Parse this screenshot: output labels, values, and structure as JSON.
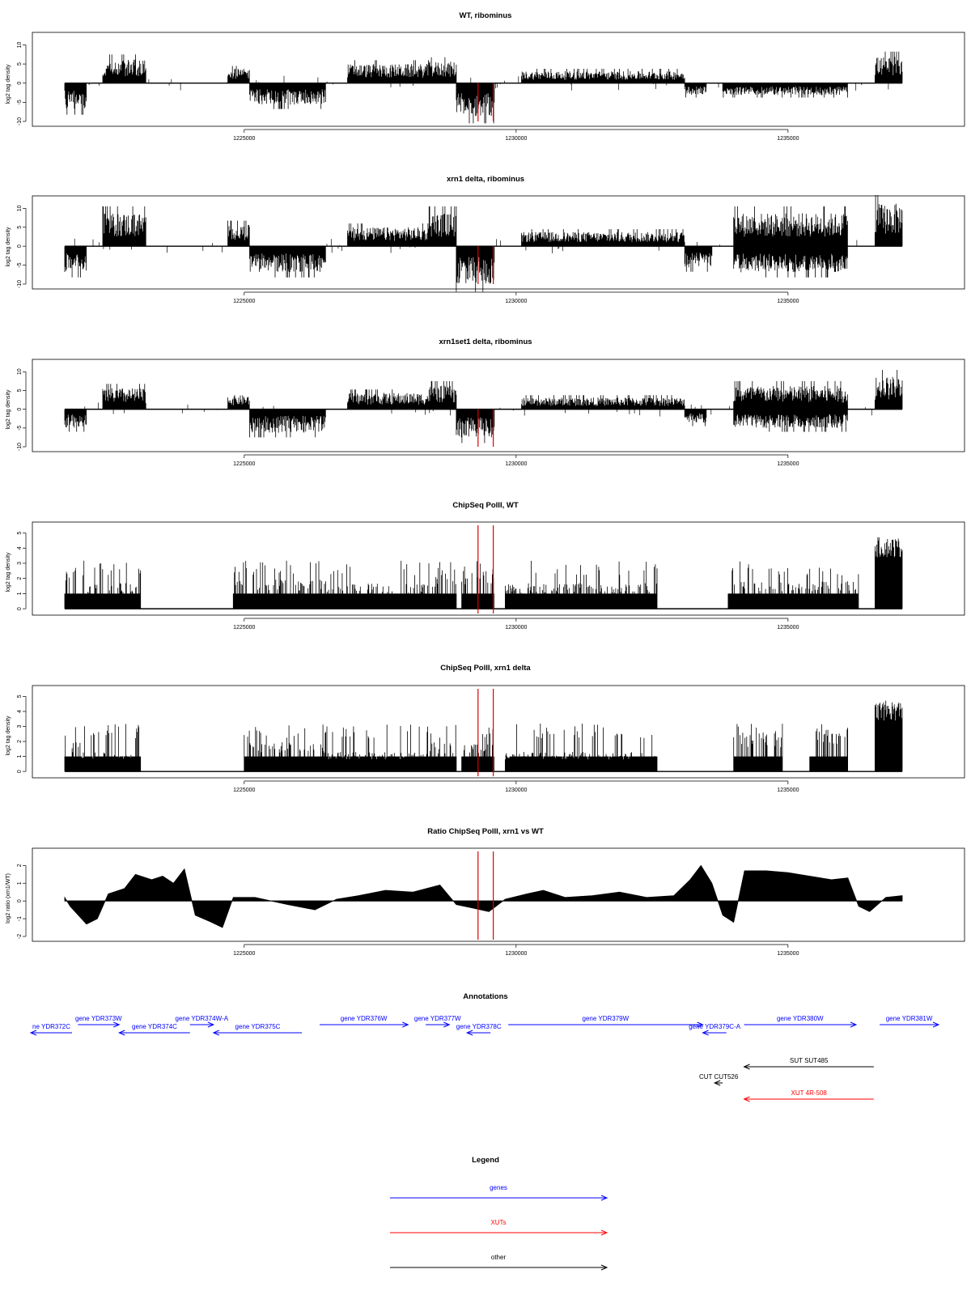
{
  "colors": {
    "ink": "#000000",
    "highlight": "#e00000",
    "genes": "#0000ff",
    "xuts": "#ff0000",
    "other": "#000000"
  },
  "chart_data": [
    {
      "type": "bar",
      "title": "WT, ribominus",
      "ylabel": "log2 tag density",
      "xlim": [
        1221700,
        1237100
      ],
      "ylim": [
        -10,
        12
      ],
      "y_ticks": [
        -10,
        -5,
        0,
        5,
        10
      ],
      "x_ticks": [
        1225000,
        1230000,
        1235000
      ],
      "highlight_x": [
        1229300,
        1229580
      ],
      "series": [
        {
          "values": [
            {
              "x": [
                1221700,
                1222100
              ],
              "y": -5.5
            },
            {
              "x": [
                1222400,
                1223200
              ],
              "y": 5.0
            },
            {
              "x": [
                1224700,
                1225100
              ],
              "y": 3.0
            },
            {
              "x": [
                1225100,
                1226500
              ],
              "y": -4.5
            },
            {
              "x": [
                1226900,
                1228400
              ],
              "y": 4.0
            },
            {
              "x": [
                1228400,
                1228900
              ],
              "y": 4.5
            },
            {
              "x": [
                1228900,
                1229600
              ],
              "y": -7.0
            },
            {
              "x": [
                1230100,
                1233100
              ],
              "y": 2.5
            },
            {
              "x": [
                1233100,
                1233500
              ],
              "y": -2.5
            },
            {
              "x": [
                1233800,
                1235000
              ],
              "y": -2.5
            },
            {
              "x": [
                1235000,
                1236100
              ],
              "y": -2.5
            },
            {
              "x": [
                1236600,
                1237100
              ],
              "y": 5.5
            }
          ]
        }
      ]
    },
    {
      "type": "bar",
      "title": "xrn1 delta, ribominus",
      "ylabel": "log2 tag density",
      "xlim": [
        1221700,
        1237100
      ],
      "ylim": [
        -10,
        12
      ],
      "y_ticks": [
        -10,
        -5,
        0,
        5,
        10
      ],
      "x_ticks": [
        1225000,
        1230000,
        1235000
      ],
      "highlight_x": [
        1229300,
        1229580
      ],
      "series": [
        {
          "values": [
            {
              "x": [
                1221700,
                1222100
              ],
              "y": -5.5
            },
            {
              "x": [
                1222400,
                1223200
              ],
              "y": 7.0
            },
            {
              "x": [
                1224700,
                1225100
              ],
              "y": 4.5
            },
            {
              "x": [
                1225100,
                1226500
              ],
              "y": -5.5
            },
            {
              "x": [
                1226900,
                1228400
              ],
              "y": 4.0
            },
            {
              "x": [
                1228400,
                1228900
              ],
              "y": 7.0
            },
            {
              "x": [
                1228900,
                1229600
              ],
              "y": -8.0
            },
            {
              "x": [
                1230100,
                1233100
              ],
              "y": 3.0
            },
            {
              "x": [
                1233100,
                1233600
              ],
              "y": -4.5
            },
            {
              "x": [
                1234000,
                1236100
              ],
              "y": 7.0
            },
            {
              "x": [
                1234000,
                1236100
              ],
              "y": -5.5
            },
            {
              "x": [
                1236600,
                1237100
              ],
              "y": 9.0
            }
          ]
        }
      ]
    },
    {
      "type": "bar",
      "title": "xrn1set1 delta, ribominus",
      "ylabel": "log2 tag density",
      "xlim": [
        1221700,
        1237100
      ],
      "ylim": [
        -10,
        12
      ],
      "y_ticks": [
        -10,
        -5,
        0,
        5,
        10
      ],
      "x_ticks": [
        1225000,
        1230000,
        1235000
      ],
      "highlight_x": [
        1229300,
        1229580
      ],
      "series": [
        {
          "values": [
            {
              "x": [
                1221700,
                1222100
              ],
              "y": -4.0
            },
            {
              "x": [
                1222400,
                1223200
              ],
              "y": 4.5
            },
            {
              "x": [
                1224700,
                1225100
              ],
              "y": 3.0
            },
            {
              "x": [
                1225100,
                1226500
              ],
              "y": -5.0
            },
            {
              "x": [
                1226900,
                1228400
              ],
              "y": 3.5
            },
            {
              "x": [
                1228400,
                1228900
              ],
              "y": 5.0
            },
            {
              "x": [
                1228900,
                1229600
              ],
              "y": -6.0
            },
            {
              "x": [
                1230100,
                1233100
              ],
              "y": 2.5
            },
            {
              "x": [
                1233100,
                1233500
              ],
              "y": -3.0
            },
            {
              "x": [
                1234000,
                1236100
              ],
              "y": 5.0
            },
            {
              "x": [
                1234000,
                1236100
              ],
              "y": -4.0
            },
            {
              "x": [
                1236600,
                1237100
              ],
              "y": 7.0
            }
          ]
        }
      ]
    },
    {
      "type": "bar",
      "title": "ChipSeq PolII, WT",
      "ylabel": "log2 tag density",
      "xlim": [
        1221700,
        1237100
      ],
      "ylim": [
        -0.1,
        5.4
      ],
      "y_ticks": [
        0,
        1,
        2,
        3,
        4,
        5
      ],
      "x_ticks": [
        1225000,
        1230000,
        1235000
      ],
      "highlight_x": [
        1229300,
        1229580
      ],
      "series": [
        {
          "values": [
            {
              "x": [
                1221700,
                1222000
              ],
              "y": 2.0
            },
            {
              "x": [
                1222000,
                1223100
              ],
              "y": 1.3
            },
            {
              "x": [
                1224800,
                1226500
              ],
              "y": 1.5
            },
            {
              "x": [
                1226500,
                1228400
              ],
              "y": 1.3
            },
            {
              "x": [
                1228400,
                1228900
              ],
              "y": 1.8
            },
            {
              "x": [
                1229000,
                1229600
              ],
              "y": 2.0
            },
            {
              "x": [
                1229800,
                1232600
              ],
              "y": 1.3
            },
            {
              "x": [
                1233900,
                1236300
              ],
              "y": 1.4
            },
            {
              "x": [
                1236600,
                1237100
              ],
              "y": 4.5
            }
          ]
        }
      ]
    },
    {
      "type": "bar",
      "title": "ChipSeq PolII, xrn1 delta",
      "ylabel": "log2 tag density",
      "xlim": [
        1221700,
        1237100
      ],
      "ylim": [
        -0.1,
        5.4
      ],
      "y_ticks": [
        0,
        1,
        2,
        3,
        4,
        5
      ],
      "x_ticks": [
        1225000,
        1230000,
        1235000
      ],
      "highlight_x": [
        1229300,
        1229580
      ],
      "series": [
        {
          "values": [
            {
              "x": [
                1221700,
                1222000
              ],
              "y": 1.5
            },
            {
              "x": [
                1222000,
                1223100
              ],
              "y": 1.0
            },
            {
              "x": [
                1225000,
                1226500
              ],
              "y": 1.5
            },
            {
              "x": [
                1226500,
                1228400
              ],
              "y": 1.0
            },
            {
              "x": [
                1228400,
                1228900
              ],
              "y": 1.5
            },
            {
              "x": [
                1229000,
                1229600
              ],
              "y": 1.5
            },
            {
              "x": [
                1229800,
                1232600
              ],
              "y": 1.0
            },
            {
              "x": [
                1234000,
                1234900
              ],
              "y": 2.0
            },
            {
              "x": [
                1235400,
                1236100
              ],
              "y": 2.3
            },
            {
              "x": [
                1236600,
                1237100
              ],
              "y": 4.5
            }
          ]
        }
      ]
    },
    {
      "type": "area",
      "title": "Ratio ChipSeq PolII, xrn1 vs WT",
      "ylabel": "log2 ratio (xrn1/WT)",
      "xlim": [
        1221700,
        1237100
      ],
      "ylim": [
        -2,
        2.7
      ],
      "y_ticks": [
        -2,
        -1,
        0,
        1,
        2
      ],
      "x_ticks": [
        1225000,
        1230000,
        1235000
      ],
      "highlight_x": [
        1229300,
        1229580
      ],
      "series": [
        {
          "x": [
            1221700,
            1221800,
            1222100,
            1222300,
            1222500,
            1222800,
            1223000,
            1223300,
            1223500,
            1223700,
            1223900,
            1224100,
            1224400,
            1224600,
            1224800,
            1225200,
            1225800,
            1226300,
            1226700,
            1227100,
            1227600,
            1228100,
            1228600,
            1228900,
            1229200,
            1229500,
            1229800,
            1230200,
            1230500,
            1230900,
            1231400,
            1231900,
            1232400,
            1232900,
            1233200,
            1233400,
            1233600,
            1233800,
            1234000,
            1234200,
            1234600,
            1235000,
            1235400,
            1235800,
            1236100,
            1236300,
            1236500,
            1236800,
            1237100
          ],
          "values": [
            0.2,
            -0.3,
            -1.3,
            -1.0,
            0.4,
            0.7,
            1.5,
            1.2,
            1.4,
            1.0,
            1.8,
            -0.8,
            -1.2,
            -1.5,
            0.2,
            0.2,
            -0.2,
            -0.5,
            0.1,
            0.3,
            0.6,
            0.5,
            0.9,
            -0.2,
            -0.4,
            -0.6,
            0.1,
            0.4,
            0.6,
            0.2,
            0.3,
            0.5,
            0.2,
            0.3,
            1.2,
            2.0,
            1.0,
            -0.8,
            -1.2,
            1.7,
            1.7,
            1.6,
            1.4,
            1.2,
            1.3,
            -0.3,
            -0.6,
            0.2,
            0.3
          ]
        }
      ]
    }
  ],
  "annotations": {
    "title": "Annotations",
    "xlim": [
      1221700,
      1237100
    ],
    "features": [
      {
        "label": "ne YDR372C",
        "kind": "gene",
        "x0": 1221700,
        "x1": 1222400,
        "dir": "left",
        "row": 1
      },
      {
        "label": "gene YDR373W",
        "kind": "gene",
        "x0": 1222500,
        "x1": 1223200,
        "dir": "right",
        "row": 0
      },
      {
        "label": "gene YDR374C",
        "kind": "gene",
        "x0": 1223200,
        "x1": 1224400,
        "dir": "left",
        "row": 1
      },
      {
        "label": "gene YDR374W-A",
        "kind": "gene",
        "x0": 1224400,
        "x1": 1224800,
        "dir": "right",
        "row": 0
      },
      {
        "label": "gene YDR375C",
        "kind": "gene",
        "x0": 1224800,
        "x1": 1226300,
        "dir": "left",
        "row": 1
      },
      {
        "label": "gene YDR376W",
        "kind": "gene",
        "x0": 1226600,
        "x1": 1228100,
        "dir": "right",
        "row": 0
      },
      {
        "label": "gene YDR377W",
        "kind": "gene",
        "x0": 1228400,
        "x1": 1228800,
        "dir": "right",
        "row": 0
      },
      {
        "label": "gene YDR378C",
        "kind": "gene",
        "x0": 1229100,
        "x1": 1229500,
        "dir": "left",
        "row": 1
      },
      {
        "label": "gene YDR379W",
        "kind": "gene",
        "x0": 1229800,
        "x1": 1233100,
        "dir": "right",
        "row": 0
      },
      {
        "label": "gene YDR379C-A",
        "kind": "gene",
        "x0": 1233100,
        "x1": 1233500,
        "dir": "left",
        "row": 1
      },
      {
        "label": "gene YDR380W",
        "kind": "gene",
        "x0": 1233800,
        "x1": 1235700,
        "dir": "right",
        "row": 0
      },
      {
        "label": "gene YDR381W",
        "kind": "gene",
        "x0": 1236100,
        "x1": 1237100,
        "dir": "right",
        "row": 0
      },
      {
        "label": "SUT SUT485",
        "kind": "other",
        "x0": 1233800,
        "x1": 1236000,
        "dir": "left",
        "row": 3
      },
      {
        "label": "CUT CUT526",
        "kind": "other",
        "x0": 1233300,
        "x1": 1233400,
        "dir": "left",
        "row": 4
      },
      {
        "label": "XUT 4R-508",
        "kind": "xut",
        "x0": 1233800,
        "x1": 1236000,
        "dir": "left",
        "row": 5
      }
    ]
  },
  "legend": {
    "title": "Legend",
    "items": [
      {
        "label": "genes",
        "kind": "gene"
      },
      {
        "label": "XUTs",
        "kind": "xut"
      },
      {
        "label": "other",
        "kind": "other"
      }
    ]
  }
}
